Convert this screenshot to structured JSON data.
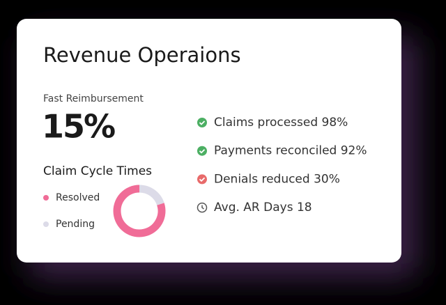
{
  "header": {
    "title": "Revenue Operaions"
  },
  "metric": {
    "label": "Fast Reimbursement",
    "value": "15%"
  },
  "chart_data": {
    "type": "donut",
    "title": "Claim Cycle Times",
    "categories": [
      "Resolved",
      "Pending"
    ],
    "values": [
      80,
      20
    ],
    "colors": [
      "#f06c97",
      "#dcdbe8"
    ]
  },
  "checklist": [
    {
      "text": "Claims processed 98%",
      "icon": "check",
      "color": "#4caf63"
    },
    {
      "text": "Payments reconciled 92%",
      "icon": "check",
      "color": "#4caf63"
    },
    {
      "text": "Denials reduced 30%",
      "icon": "check",
      "color": "#e86a6a"
    },
    {
      "text": "Avg. AR Days 18",
      "icon": "clock",
      "color": "#555555"
    }
  ]
}
